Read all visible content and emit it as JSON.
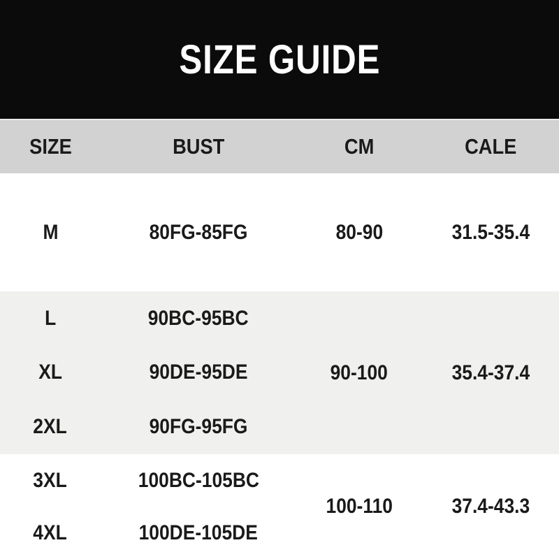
{
  "title": "SIZE GUIDE",
  "colors": {
    "banner_bg": "#0b0b0b",
    "title_text": "#ffffff",
    "header_bg": "#d2d2d2",
    "stripe_bg": "#f0f0ee",
    "body_text": "#1a1a1a"
  },
  "table": {
    "columns": [
      "SIZE",
      "BUST",
      "CM",
      "CALE"
    ],
    "groups": [
      {
        "rows": [
          {
            "size": "M",
            "bust": "80FG-85FG"
          }
        ],
        "cm": "80-90",
        "cale": "31.5-35.4"
      },
      {
        "rows": [
          {
            "size": "L",
            "bust": "90BC-95BC"
          },
          {
            "size": "XL",
            "bust": "90DE-95DE"
          },
          {
            "size": "2XL",
            "bust": "90FG-95FG"
          }
        ],
        "cm": "90-100",
        "cale": "35.4-37.4"
      },
      {
        "rows": [
          {
            "size": "3XL",
            "bust": "100BC-105BC"
          },
          {
            "size": "4XL",
            "bust": "100DE-105DE"
          }
        ],
        "cm": "100-110",
        "cale": "37.4-43.3"
      }
    ]
  },
  "chart_data": {
    "type": "table",
    "title": "SIZE GUIDE",
    "columns": [
      "SIZE",
      "BUST",
      "CM",
      "CALE"
    ],
    "rows": [
      [
        "M",
        "80FG-85FG",
        "80-90",
        "31.5-35.4"
      ],
      [
        "L",
        "90BC-95BC",
        "90-100",
        "35.4-37.4"
      ],
      [
        "XL",
        "90DE-95DE",
        "90-100",
        "35.4-37.4"
      ],
      [
        "2XL",
        "90FG-95FG",
        "90-100",
        "35.4-37.4"
      ],
      [
        "3XL",
        "100BC-105BC",
        "100-110",
        "37.4-43.3"
      ],
      [
        "4XL",
        "100DE-105DE",
        "100-110",
        "37.4-43.3"
      ]
    ],
    "layout_hints": "CM and CALE values are merged (shared) across each row group; gridlines off; alternating white / light-gray group bands"
  }
}
